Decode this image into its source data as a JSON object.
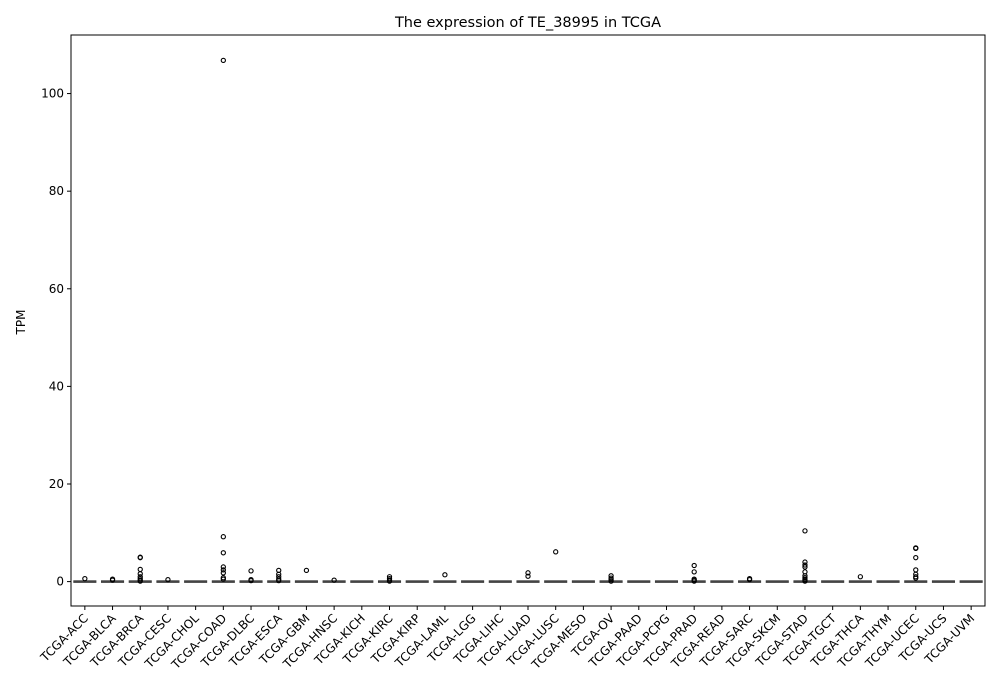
{
  "chart_data": {
    "type": "box",
    "title": "The expression of TE_38995 in TCGA",
    "xlabel": "",
    "ylabel": "TPM",
    "ylim": [
      -5,
      112
    ],
    "yticks": [
      0,
      20,
      40,
      60,
      80,
      100
    ],
    "grid": false,
    "legend": "none",
    "categories": [
      "TCGA-ACC",
      "TCGA-BLCA",
      "TCGA-BRCA",
      "TCGA-CESC",
      "TCGA-CHOL",
      "TCGA-COAD",
      "TCGA-DLBC",
      "TCGA-ESCA",
      "TCGA-GBM",
      "TCGA-HNSC",
      "TCGA-KICH",
      "TCGA-KIRC",
      "TCGA-KIRP",
      "TCGA-LAML",
      "TCGA-LGG",
      "TCGA-LIHC",
      "TCGA-LUAD",
      "TCGA-LUSC",
      "TCGA-MESO",
      "TCGA-OV",
      "TCGA-PAAD",
      "TCGA-PCPG",
      "TCGA-PRAD",
      "TCGA-READ",
      "TCGA-SARC",
      "TCGA-SKCM",
      "TCGA-STAD",
      "TCGA-TGCT",
      "TCGA-THCA",
      "TCGA-THYM",
      "TCGA-UCEC",
      "TCGA-UCS",
      "TCGA-UVM"
    ],
    "medians": [
      0,
      0,
      0,
      0,
      0,
      0,
      0,
      0,
      0,
      0,
      0,
      0,
      0,
      0,
      0,
      0,
      0,
      0,
      0,
      0,
      0,
      0,
      0,
      0,
      0,
      0,
      0,
      0,
      0,
      0,
      0,
      0,
      0
    ],
    "outliers": [
      [
        0.6
      ],
      [
        0.5,
        0.3
      ],
      [
        5.0,
        4.9,
        2.5,
        1.6,
        1.0,
        0.6,
        0.3,
        0.1
      ],
      [
        0.4
      ],
      [],
      [
        106.8,
        9.2,
        5.9,
        3.0,
        2.4,
        1.8,
        0.8,
        0.5
      ],
      [
        2.2,
        0.4,
        0.2
      ],
      [
        2.3,
        1.5,
        1.0,
        0.5,
        0.2
      ],
      [
        2.3
      ],
      [
        0.3
      ],
      [],
      [
        1.0,
        0.6,
        0.3,
        0.1
      ],
      [],
      [
        1.4
      ],
      [],
      [],
      [
        1.8,
        1.1
      ],
      [
        6.1
      ],
      [],
      [
        1.2,
        0.7,
        0.4,
        0.1
      ],
      [],
      [],
      [
        3.3,
        2.0,
        0.5,
        0.3,
        0.1
      ],
      [],
      [
        0.6,
        0.4
      ],
      [],
      [
        10.4,
        4.0,
        3.4,
        3.0,
        2.0,
        1.2,
        0.8,
        0.5,
        0.3,
        0.1
      ],
      [],
      [
        1.0
      ],
      [],
      [
        6.9,
        6.8,
        4.9,
        2.4,
        1.5,
        1.0,
        0.7
      ],
      [],
      []
    ]
  }
}
